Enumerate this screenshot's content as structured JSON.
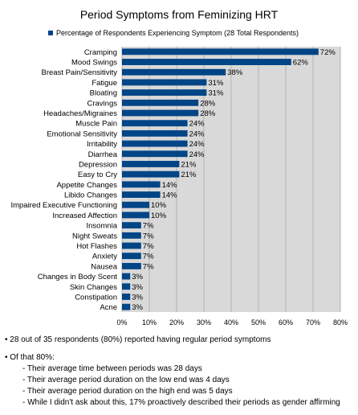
{
  "chart_data": {
    "type": "bar",
    "orientation": "horizontal",
    "title": "Period Symptoms from Feminizing HRT",
    "legend": {
      "position": "top",
      "label": "Percentage of Respondents Experiencing Symptom (28 Total Respondents)"
    },
    "categories": [
      "Cramping",
      "Mood Swings",
      "Breast Pain/Sensitivity",
      "Fatigue",
      "Bloating",
      "Cravings",
      "Headaches/Migraines",
      "Muscle Pain",
      "Emotional Sensitivity",
      "Irritability",
      "Diarrhea",
      "Depression",
      "Easy to Cry",
      "Appetite Changes",
      "Libido Changes",
      "Impaired Executive Functioning",
      "Increased Affection",
      "Insomnia",
      "Night Sweats",
      "Hot Flashes",
      "Anxiety",
      "Nausea",
      "Changes in Body Scent",
      "Skin Changes",
      "Constipation",
      "Acne"
    ],
    "values": [
      72,
      62,
      38,
      31,
      31,
      28,
      28,
      24,
      24,
      24,
      24,
      21,
      21,
      14,
      14,
      10,
      10,
      7,
      7,
      7,
      7,
      7,
      3,
      3,
      3,
      3
    ],
    "data_labels": [
      "72%",
      "62%",
      "38%",
      "31%",
      "31%",
      "28%",
      "28%",
      "24%",
      "24%",
      "24%",
      "24%",
      "21%",
      "21%",
      "14%",
      "14%",
      "10%",
      "10%",
      "7%",
      "7%",
      "7%",
      "7%",
      "7%",
      "3%",
      "3%",
      "3%",
      "3%"
    ],
    "xlim": [
      0,
      80
    ],
    "x_ticks": [
      "0%",
      "10%",
      "20%",
      "30%",
      "40%",
      "50%",
      "60%",
      "70%",
      "80%"
    ],
    "grid": "vertical",
    "bar_color": "#004586",
    "plot_background": "#d9d9d9"
  },
  "notes": {
    "summary": "• 28 out of 35 respondents (80%) reported having regular period symptoms",
    "of_that": "• Of that 80%:",
    "details": [
      "- Their average time between periods was 28 days",
      "- Their average period duration on the low end was 4 days",
      "- Their average period duration on the high end was 5 days",
      "- While I didn't ask about this, 17% proactively described their periods as gender affirming"
    ]
  }
}
